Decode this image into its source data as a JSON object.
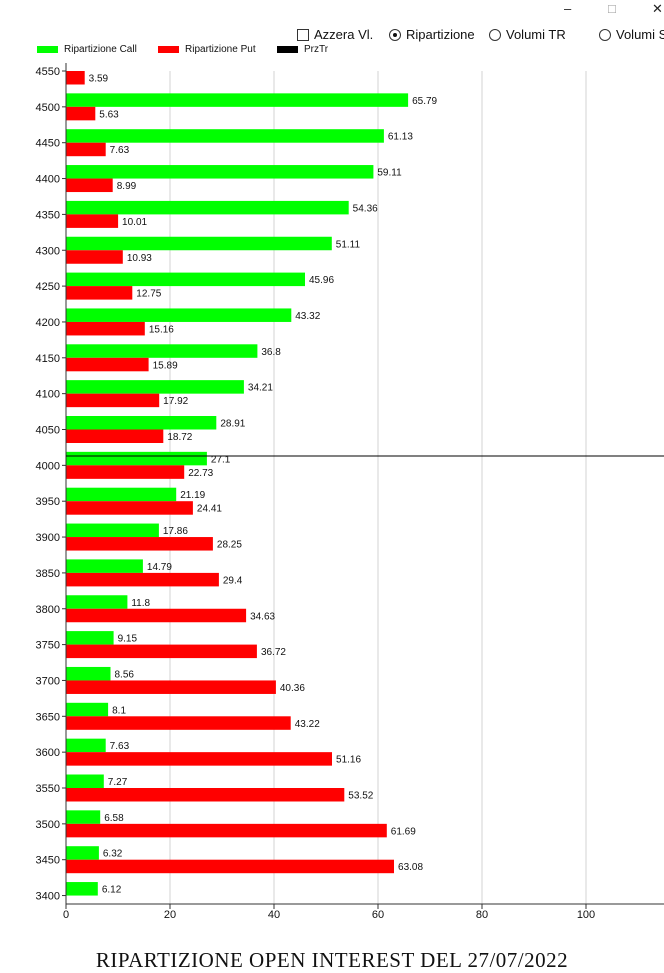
{
  "window": {
    "controls": {
      "minimize": "–",
      "maximize": "□",
      "close": "✕"
    }
  },
  "options": {
    "azzera_label": "Azzera Vl.",
    "ripartizione_label": "Ripartizione",
    "volumi_tr_label": "Volumi TR",
    "volumi_s_label": "Volumi S",
    "selected": "Ripartizione"
  },
  "legend": {
    "call_label": "Ripartizione Call",
    "put_label": "Ripartizione Put",
    "prz_label": "PrzTr"
  },
  "colors": {
    "call": "#00ff00",
    "put": "#ff0000",
    "prz": "#000000",
    "grid": "#d3d3d3"
  },
  "chart_data": {
    "type": "bar",
    "orientation": "horizontal",
    "title": "RIPARTIZIONE OPEN INTEREST DEL 27/07/2022",
    "categories": [
      4550,
      4500,
      4450,
      4400,
      4350,
      4300,
      4250,
      4200,
      4150,
      4100,
      4050,
      4000,
      3950,
      3900,
      3850,
      3800,
      3750,
      3700,
      3650,
      3600,
      3550,
      3500,
      3450,
      3400
    ],
    "series": [
      {
        "name": "Ripartizione Call",
        "values": [
          null,
          65.79,
          61.13,
          59.11,
          54.36,
          51.11,
          45.96,
          43.32,
          36.8,
          34.21,
          28.91,
          27.1,
          21.19,
          17.86,
          14.79,
          11.8,
          9.15,
          8.56,
          8.1,
          7.63,
          7.27,
          6.58,
          6.32,
          6.12
        ]
      },
      {
        "name": "Ripartizione Put",
        "values": [
          3.59,
          5.63,
          7.63,
          8.99,
          10.01,
          10.93,
          12.75,
          15.16,
          15.89,
          17.92,
          18.72,
          22.73,
          24.41,
          28.25,
          29.4,
          34.63,
          36.72,
          40.36,
          43.22,
          51.16,
          53.52,
          61.69,
          63.08,
          null
        ]
      }
    ],
    "value_labels": {
      "call": [
        "",
        "65.79",
        "61.13",
        "59.11",
        "54.36",
        "51.11",
        "45.96",
        "43.32",
        "36.8",
        "34.21",
        "28.91",
        "27.1",
        "21.19",
        "17.86",
        "14.79",
        "11.8",
        "9.15",
        "8.56",
        "8.1",
        "7.63",
        "7.27",
        "6.58",
        "6.32",
        "6.12"
      ],
      "put": [
        "3.59",
        "5.63",
        "7.63",
        "8.99",
        "10.01",
        "10.93",
        "12.75",
        "15.16",
        "15.89",
        "17.92",
        "18.72",
        "22.73",
        "24.41",
        "28.25",
        "29.4",
        "34.63",
        "36.72",
        "40.36",
        "43.22",
        "51.16",
        "53.52",
        "61.69",
        "63.08",
        ""
      ]
    },
    "prz_level": 4013,
    "xlim": [
      0,
      115
    ],
    "xticks": [
      0,
      20,
      40,
      60,
      80,
      100
    ],
    "grid": true,
    "legend_position": "top-left"
  }
}
